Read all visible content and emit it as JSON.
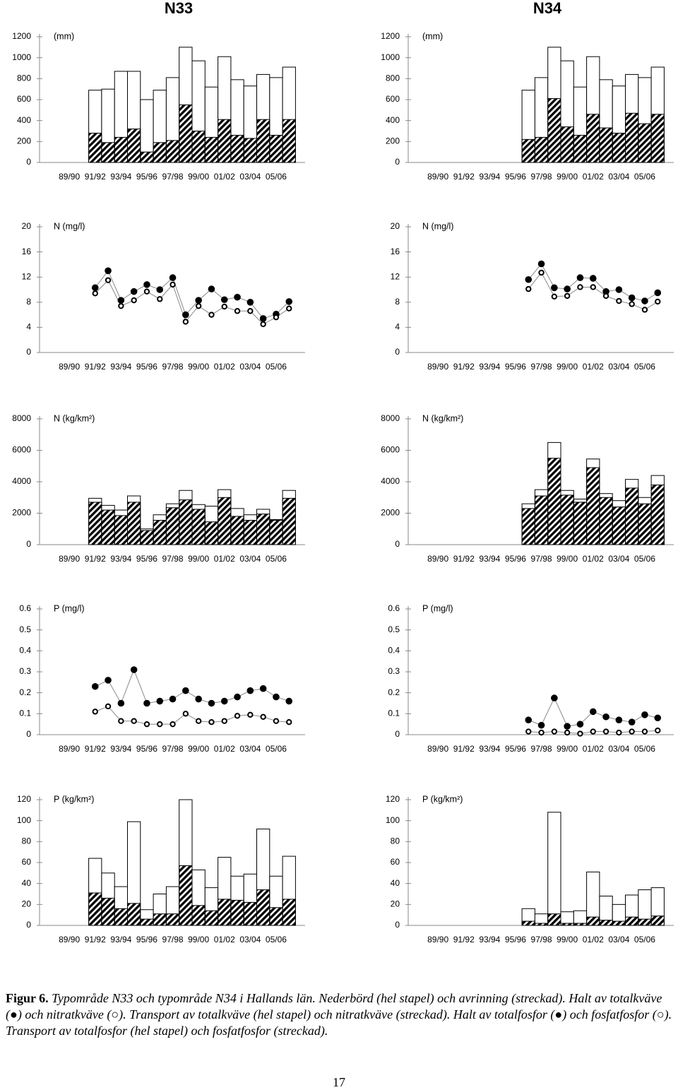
{
  "chart_data": [
    {
      "type": "bar",
      "title": "N33",
      "ylabel": "(mm)",
      "categories": [
        "89/90",
        null,
        "91/92",
        null,
        "93/94",
        null,
        "95/96",
        null,
        "97/98",
        null,
        "99/00",
        null,
        "01/02",
        null,
        "03/04",
        null,
        "05/06",
        null
      ],
      "ylim": [
        0,
        1200
      ],
      "yticks": [
        0,
        200,
        400,
        600,
        800,
        1000,
        1200
      ],
      "series": [
        {
          "style": "outline",
          "color": "#000000",
          "values": [
            null,
            null,
            690,
            700,
            870,
            870,
            600,
            690,
            810,
            1100,
            970,
            720,
            1010,
            790,
            730,
            840,
            810,
            910
          ]
        },
        {
          "style": "hatch",
          "color": "#000000",
          "values": [
            null,
            null,
            280,
            190,
            240,
            320,
            100,
            190,
            210,
            550,
            300,
            240,
            410,
            260,
            230,
            410,
            260,
            410
          ]
        }
      ]
    },
    {
      "type": "bar",
      "title": "N34",
      "ylabel": "(mm)",
      "categories": [
        "89/90",
        null,
        "91/92",
        null,
        "93/94",
        null,
        "95/96",
        null,
        "97/98",
        null,
        "99/00",
        null,
        "01/02",
        null,
        "03/04",
        null,
        "05/06",
        null
      ],
      "ylim": [
        0,
        1200
      ],
      "yticks": [
        0,
        200,
        400,
        600,
        800,
        1000,
        1200
      ],
      "series": [
        {
          "style": "outline",
          "color": "#000000",
          "values": [
            null,
            null,
            null,
            null,
            null,
            null,
            null,
            690,
            810,
            1100,
            970,
            720,
            1010,
            790,
            730,
            840,
            810,
            910
          ]
        },
        {
          "style": "hatch",
          "color": "#000000",
          "values": [
            null,
            null,
            null,
            null,
            null,
            null,
            null,
            220,
            240,
            610,
            340,
            260,
            460,
            330,
            280,
            470,
            370,
            460
          ]
        }
      ]
    },
    {
      "type": "line",
      "ylabel": "N (mg/l)",
      "categories": [
        "89/90",
        null,
        "91/92",
        null,
        "93/94",
        null,
        "95/96",
        null,
        "97/98",
        null,
        "99/00",
        null,
        "01/02",
        null,
        "03/04",
        null,
        "05/06",
        null
      ],
      "ylim": [
        0,
        20
      ],
      "yticks": [
        0,
        4,
        8,
        12,
        16,
        20
      ],
      "series": [
        {
          "style": "filled",
          "color": "#000000",
          "values": [
            null,
            null,
            10.3,
            13.0,
            8.3,
            9.7,
            10.8,
            10.0,
            11.9,
            6.0,
            8.3,
            10.1,
            8.4,
            8.8,
            8.0,
            5.4,
            6.1,
            8.1
          ]
        },
        {
          "style": "open",
          "color": "#000000",
          "values": [
            null,
            null,
            9.4,
            11.5,
            7.4,
            8.3,
            9.7,
            8.5,
            10.8,
            4.9,
            7.4,
            6.0,
            7.3,
            6.6,
            6.6,
            4.5,
            5.6,
            7.0
          ]
        }
      ]
    },
    {
      "type": "line",
      "ylabel": "N (mg/l)",
      "categories": [
        "89/90",
        null,
        "91/92",
        null,
        "93/94",
        null,
        "95/96",
        null,
        "97/98",
        null,
        "99/00",
        null,
        "01/02",
        null,
        "03/04",
        null,
        "05/06",
        null
      ],
      "ylim": [
        0,
        20
      ],
      "yticks": [
        0,
        4,
        8,
        12,
        16,
        20
      ],
      "series": [
        {
          "style": "filled",
          "color": "#000000",
          "values": [
            null,
            null,
            null,
            null,
            null,
            null,
            null,
            11.6,
            14.1,
            10.3,
            10.1,
            11.9,
            11.8,
            9.7,
            10.0,
            8.7,
            8.2,
            9.5
          ]
        },
        {
          "style": "open",
          "color": "#000000",
          "values": [
            null,
            null,
            null,
            null,
            null,
            null,
            null,
            10.1,
            12.7,
            8.9,
            9.0,
            10.4,
            10.4,
            9.0,
            8.2,
            7.7,
            6.8,
            8.1
          ]
        }
      ]
    },
    {
      "type": "bar",
      "ylabel": "N (kg/km²)",
      "categories": [
        "89/90",
        null,
        "91/92",
        null,
        "93/94",
        null,
        "95/96",
        null,
        "97/98",
        null,
        "99/00",
        null,
        "01/02",
        null,
        "03/04",
        null,
        "05/06",
        null
      ],
      "ylim": [
        0,
        8000
      ],
      "yticks": [
        0,
        2000,
        4000,
        6000,
        8000
      ],
      "series": [
        {
          "style": "outline",
          "color": "#000000",
          "values": [
            null,
            null,
            2950,
            2500,
            2200,
            3100,
            1000,
            1900,
            2600,
            3450,
            2550,
            2450,
            3500,
            2300,
            1900,
            2250,
            1600,
            3450
          ]
        },
        {
          "style": "hatch",
          "color": "#000000",
          "values": [
            null,
            null,
            2700,
            2200,
            1850,
            2700,
            900,
            1550,
            2350,
            2850,
            2250,
            1450,
            3000,
            1800,
            1550,
            1950,
            1550,
            2950
          ]
        }
      ]
    },
    {
      "type": "bar",
      "ylabel": "N (kg/km²)",
      "categories": [
        "89/90",
        null,
        "91/92",
        null,
        "93/94",
        null,
        "95/96",
        null,
        "97/98",
        null,
        "99/00",
        null,
        "01/02",
        null,
        "03/04",
        null,
        "05/06",
        null
      ],
      "ylim": [
        0,
        8000
      ],
      "yticks": [
        0,
        2000,
        4000,
        6000,
        8000
      ],
      "series": [
        {
          "style": "outline",
          "color": "#000000",
          "values": [
            null,
            null,
            null,
            null,
            null,
            null,
            null,
            2600,
            3500,
            6500,
            3450,
            2900,
            5450,
            3250,
            2800,
            4150,
            3000,
            4400
          ]
        },
        {
          "style": "hatch",
          "color": "#000000",
          "values": [
            null,
            null,
            null,
            null,
            null,
            null,
            null,
            2300,
            3100,
            5500,
            3150,
            2700,
            4900,
            3000,
            2400,
            3600,
            2600,
            3800
          ]
        }
      ]
    },
    {
      "type": "line",
      "ylabel": "P (mg/l)",
      "categories": [
        "89/90",
        null,
        "91/92",
        null,
        "93/94",
        null,
        "95/96",
        null,
        "97/98",
        null,
        "99/00",
        null,
        "01/02",
        null,
        "03/04",
        null,
        "05/06",
        null
      ],
      "ylim": [
        0,
        0.6
      ],
      "yticks": [
        0,
        0.1,
        0.2,
        0.3,
        0.4,
        0.5,
        0.6
      ],
      "series": [
        {
          "style": "filled",
          "color": "#000000",
          "values": [
            null,
            null,
            0.23,
            0.26,
            0.15,
            0.31,
            0.15,
            0.16,
            0.17,
            0.21,
            0.17,
            0.15,
            0.16,
            0.18,
            0.21,
            0.22,
            0.18,
            0.16
          ]
        },
        {
          "style": "open",
          "color": "#000000",
          "values": [
            null,
            null,
            0.11,
            0.135,
            0.065,
            0.065,
            0.05,
            0.05,
            0.05,
            0.1,
            0.065,
            0.06,
            0.065,
            0.09,
            0.095,
            0.085,
            0.065,
            0.06
          ]
        }
      ]
    },
    {
      "type": "line",
      "ylabel": "P (mg/l)",
      "categories": [
        "89/90",
        null,
        "91/92",
        null,
        "93/94",
        null,
        "95/96",
        null,
        "97/98",
        null,
        "99/00",
        null,
        "01/02",
        null,
        "03/04",
        null,
        "05/06",
        null
      ],
      "ylim": [
        0,
        0.6
      ],
      "yticks": [
        0,
        0.1,
        0.2,
        0.3,
        0.4,
        0.5,
        0.6
      ],
      "series": [
        {
          "style": "filled",
          "color": "#000000",
          "values": [
            null,
            null,
            null,
            null,
            null,
            null,
            null,
            0.07,
            0.045,
            0.175,
            0.04,
            0.05,
            0.11,
            0.085,
            0.07,
            0.06,
            0.095,
            0.08
          ]
        },
        {
          "style": "open",
          "color": "#000000",
          "values": [
            null,
            null,
            null,
            null,
            null,
            null,
            null,
            0.015,
            0.01,
            0.015,
            0.01,
            0.005,
            0.015,
            0.015,
            0.01,
            0.015,
            0.015,
            0.02
          ]
        }
      ]
    },
    {
      "type": "bar",
      "ylabel": "P (kg/km²)",
      "categories": [
        "89/90",
        null,
        "91/92",
        null,
        "93/94",
        null,
        "95/96",
        null,
        "97/98",
        null,
        "99/00",
        null,
        "01/02",
        null,
        "03/04",
        null,
        "05/06",
        null
      ],
      "ylim": [
        0,
        120
      ],
      "yticks": [
        0,
        20,
        40,
        60,
        80,
        100,
        120
      ],
      "series": [
        {
          "style": "outline",
          "color": "#000000",
          "values": [
            null,
            null,
            64,
            50,
            37,
            99,
            15,
            30,
            37,
            120,
            53,
            36,
            65,
            47,
            49,
            92,
            47,
            66
          ]
        },
        {
          "style": "hatch",
          "color": "#000000",
          "values": [
            null,
            null,
            31,
            26,
            16,
            21,
            6,
            11,
            11,
            57,
            19,
            14,
            25,
            24,
            22,
            34,
            17,
            25
          ]
        }
      ]
    },
    {
      "type": "bar",
      "ylabel": "P (kg/km²)",
      "categories": [
        "89/90",
        null,
        "91/92",
        null,
        "93/94",
        null,
        "95/96",
        null,
        "97/98",
        null,
        "99/00",
        null,
        "01/02",
        null,
        "03/04",
        null,
        "05/06",
        null
      ],
      "ylim": [
        0,
        120
      ],
      "yticks": [
        0,
        20,
        40,
        60,
        80,
        100,
        120
      ],
      "series": [
        {
          "style": "outline",
          "color": "#000000",
          "values": [
            null,
            null,
            null,
            null,
            null,
            null,
            null,
            16,
            11,
            108,
            13,
            14,
            51,
            28,
            20,
            29,
            34,
            36
          ]
        },
        {
          "style": "hatch",
          "color": "#000000",
          "values": [
            null,
            null,
            null,
            null,
            null,
            null,
            null,
            4,
            2,
            11,
            2,
            2,
            8,
            5,
            4,
            8,
            6,
            9
          ]
        }
      ]
    }
  ],
  "caption": {
    "label": "Figur 6.",
    "text": "Typområde N33 och typområde N34 i Hallands län. Nederbörd (hel stapel) och avrinning (streckad). Halt av totalkväve (●) och nitratkväve (○). Transport av totalkväve (hel stapel) och nitratkväve (streckad). Halt av totalfosfor (●) och fosfatfosfor (○). Transport av totalfosfor (hel stapel) och fosfatfosfor (streckad)."
  },
  "page_number": "17"
}
